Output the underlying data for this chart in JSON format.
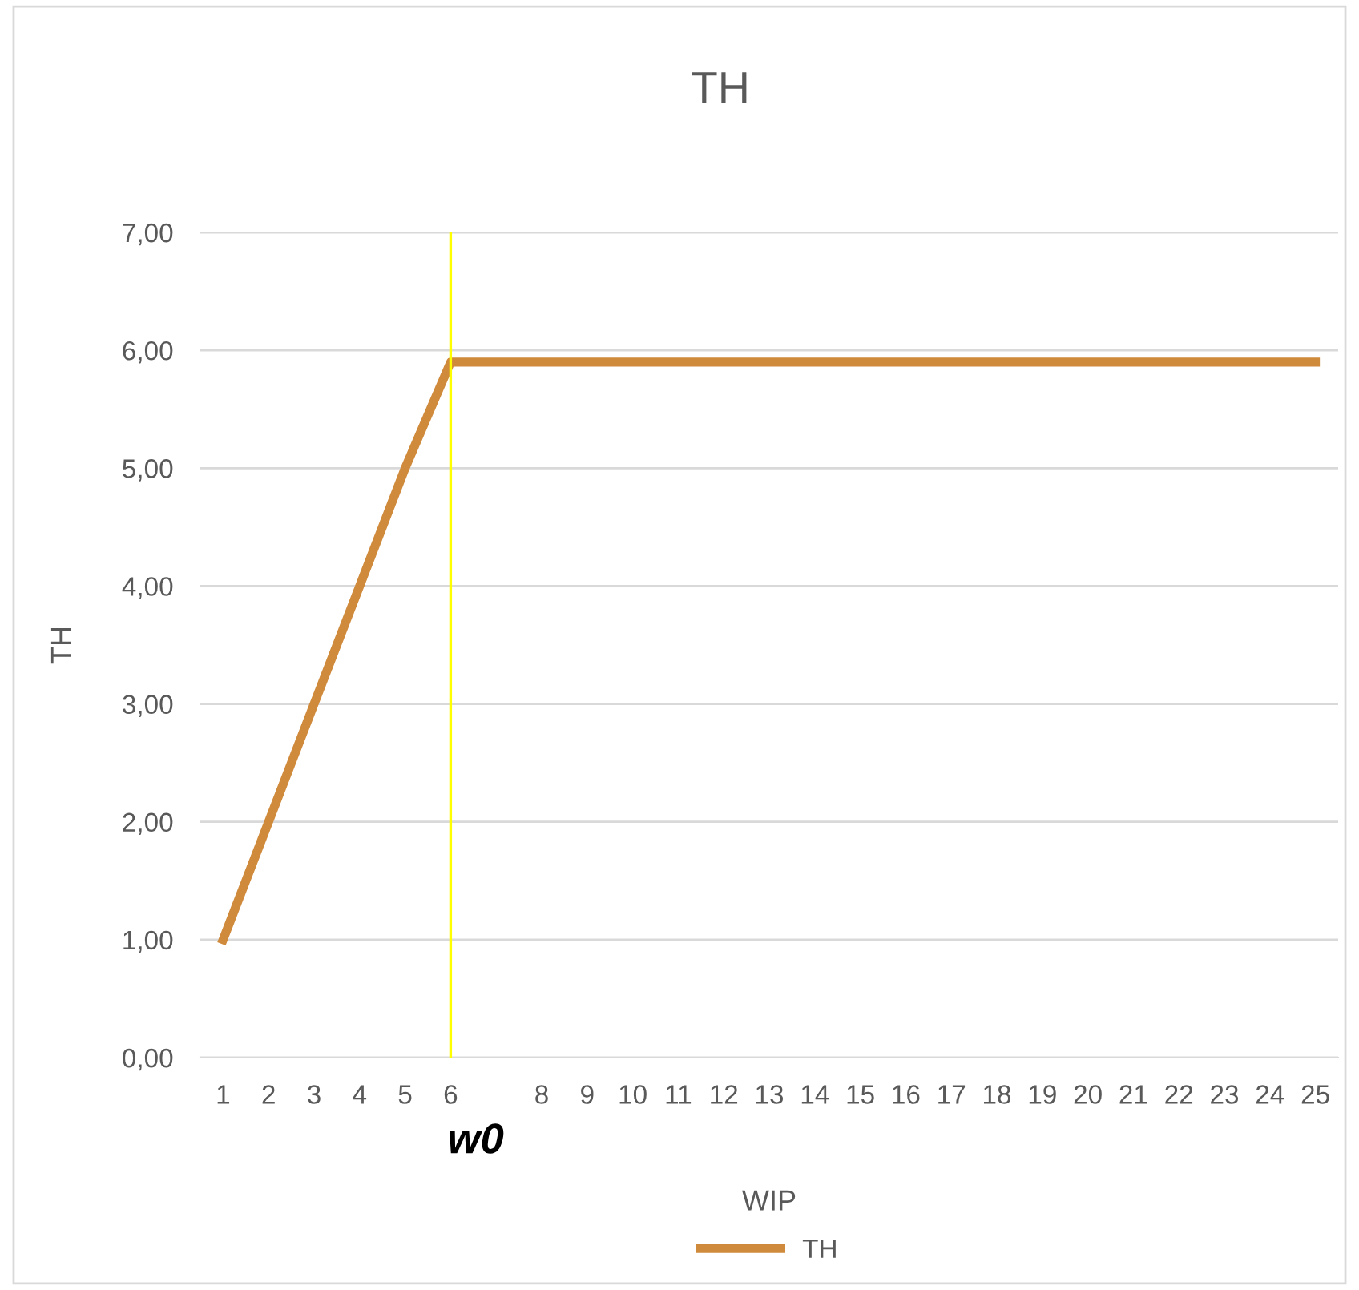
{
  "chart_data": {
    "type": "line",
    "title": "TH",
    "xlabel": "WIP",
    "ylabel": "TH",
    "categories": [
      "1",
      "2",
      "3",
      "4",
      "5",
      "6",
      null,
      "8",
      "9",
      "10",
      "11",
      "12",
      "13",
      "14",
      "15",
      "16",
      "17",
      "18",
      "19",
      "20",
      "21",
      "22",
      "23",
      "24",
      "25"
    ],
    "series": [
      {
        "name": "TH",
        "color": "#d08a3c",
        "values": [
          1,
          2,
          3,
          4,
          5,
          5.9,
          5.9,
          5.9,
          5.9,
          5.9,
          5.9,
          5.9,
          5.9,
          5.9,
          5.9,
          5.9,
          5.9,
          5.9,
          5.9,
          5.9,
          5.9,
          5.9,
          5.9,
          5.9,
          5.9
        ]
      }
    ],
    "ylim": [
      0,
      7
    ],
    "yticks": [
      {
        "value": 0,
        "label": "0,00"
      },
      {
        "value": 1,
        "label": "1,00"
      },
      {
        "value": 2,
        "label": "2,00"
      },
      {
        "value": 3,
        "label": "3,00"
      },
      {
        "value": 4,
        "label": "4,00"
      },
      {
        "value": 5,
        "label": "5,00"
      },
      {
        "value": 6,
        "label": "6,00"
      },
      {
        "value": 7,
        "label": "7,00"
      }
    ],
    "ref_lines": [
      {
        "axis": "x",
        "value": "6",
        "color": "#ffff00"
      }
    ],
    "annotations": [
      "w0"
    ],
    "grid": "y",
    "legend": "bottom",
    "marker": "none",
    "line_style": "solid"
  }
}
